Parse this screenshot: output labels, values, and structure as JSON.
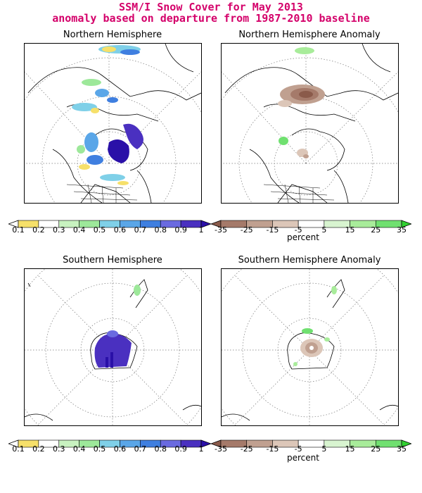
{
  "header": {
    "title_line1": "SSM/I Snow Cover for May 2013",
    "title_line2": "anomaly based on departure from 1987-2010 baseline"
  },
  "panels": {
    "nh": "Northern Hemisphere",
    "nh_anom": "Northern Hemisphere Anomaly",
    "sh": "Southern Hemisphere",
    "sh_anom": "Southern Hemisphere Anomaly"
  },
  "cover_scale": {
    "labels": [
      "0.1",
      "0.2",
      "0.3",
      "0.4",
      "0.5",
      "0.6",
      "0.7",
      "0.8",
      "0.9",
      "1"
    ],
    "colors": [
      "#ffffff",
      "#f6e06a",
      "#ffffff",
      "#c8f2c0",
      "#9de89a",
      "#7fd0e8",
      "#5aa6e8",
      "#3f7fe0",
      "#6a6ae0",
      "#4a30c0",
      "#2a10a8"
    ]
  },
  "anomaly_scale": {
    "labels": [
      "-35",
      "-25",
      "-15",
      "-5",
      "5",
      "15",
      "25",
      "35"
    ],
    "colors": [
      "#8a5a4a",
      "#a57a6a",
      "#c0a090",
      "#dcc6b8",
      "#ffffff",
      "#d8f4d0",
      "#a8ec9a",
      "#70e070",
      "#30d030"
    ],
    "unit": "percent"
  },
  "colors": {
    "title": "#d4006a",
    "snow_low": "#f6e06a",
    "snow_mid": "#5aa6e8",
    "snow_high": "#3020b0",
    "anom_neg": "#a57a6a",
    "anom_pos": "#70e070"
  }
}
